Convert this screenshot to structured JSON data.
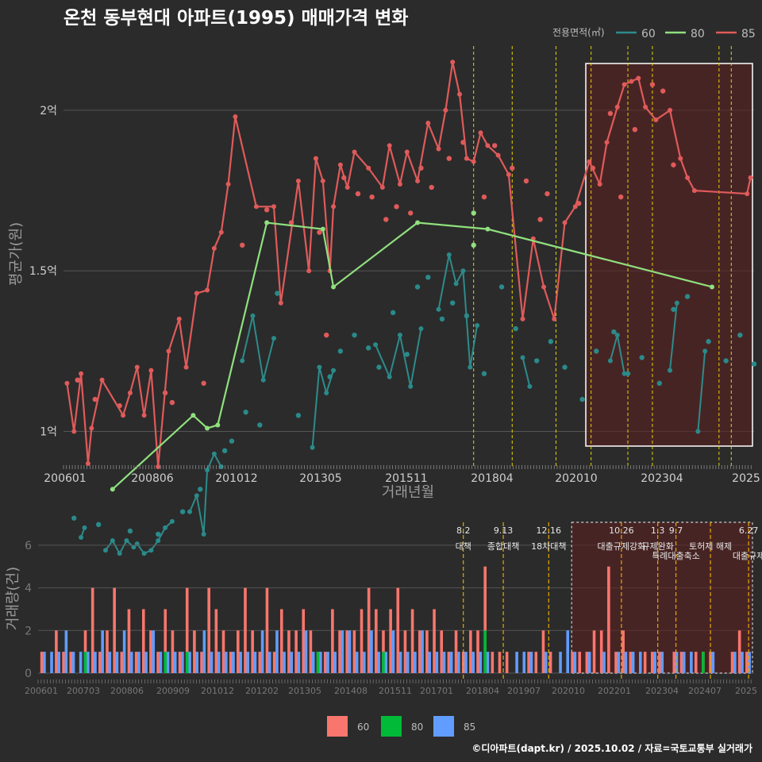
{
  "title": "온천 동부현대 아파트(1995) 매매가격 변화",
  "credit": "©디아파트(dapt.kr) / 2025.10.02 / 자료=국토교통부 실거래가",
  "colors": {
    "background": "#2b2b2b",
    "grid": "#555555",
    "s60": "#2a8a8a",
    "s60_line": "#2e8b8b",
    "s80": "#90e07e",
    "s85": "#e05a5a",
    "bar60": "#f8766d",
    "bar80": "#00ba38",
    "bar85": "#619cff",
    "event_line": "#e6d200",
    "event_line_bottom": "#e6a800",
    "highlight_fill": "#5a2020",
    "highlight_border": "#ffffff"
  },
  "chart_data": [
    {
      "type": "line",
      "name": "price",
      "title": "온천 동부현대 아파트(1995) 매매가격 변화",
      "xlabel": "거래년월",
      "ylabel": "평균가(원)",
      "x_ticks": [
        "200601",
        "200806",
        "201012",
        "201305",
        "201511",
        "201804",
        "202010",
        "202304",
        "2025"
      ],
      "y_ticks": [
        {
          "value": 10000,
          "label": "1억"
        },
        {
          "value": 15000,
          "label": "1.5억"
        },
        {
          "value": 20000,
          "label": "2억"
        }
      ],
      "ylim": [
        9000,
        22000
      ],
      "xlim": [
        2005.9,
        2025.6
      ],
      "legend_title": "전용면적(㎡)",
      "legend": [
        "60",
        "80",
        "85"
      ],
      "series": [
        {
          "name": "85",
          "line_x": [
            2006.0,
            2006.2,
            2006.4,
            2006.6,
            2006.7,
            2007.0,
            2007.6,
            2007.8,
            2008.0,
            2008.2,
            2008.4,
            2008.6,
            2008.9,
            2009.2,
            2009.4,
            2009.7,
            2010.0,
            2010.2,
            2010.4,
            2010.6,
            2010.8,
            2011.4,
            2011.9,
            2012.1,
            2012.6,
            2012.9,
            2013.1,
            2013.3,
            2013.5,
            2013.6,
            2013.8,
            2014.0,
            2014.2,
            2014.6,
            2015.0,
            2015.2,
            2015.5,
            2015.7,
            2016.0,
            2016.3,
            2016.6,
            2016.8,
            2017.0,
            2017.2,
            2017.4,
            2017.6,
            2017.8,
            2018.0,
            2018.3,
            2018.6,
            2019.0,
            2019.3,
            2019.6,
            2019.9,
            2020.2,
            2020.5,
            2020.9,
            2021.2,
            2021.4,
            2021.7,
            2021.9,
            2022.1,
            2022.3,
            2022.5,
            2022.8,
            2023.2,
            2023.5,
            2023.7,
            2023.9,
            2025.4,
            2025.5
          ],
          "line_y": [
            11500,
            10000,
            11800,
            9000,
            10100,
            11600,
            10500,
            11200,
            12000,
            10500,
            11900,
            8900,
            12500,
            13500,
            12000,
            14300,
            14400,
            15700,
            16200,
            17700,
            19800,
            17000,
            17000,
            14000,
            17800,
            15000,
            18500,
            17800,
            15000,
            17000,
            18300,
            17600,
            18700,
            18200,
            17600,
            18900,
            17700,
            18700,
            17800,
            19600,
            18800,
            20000,
            21500,
            20500,
            18500,
            18400,
            19300,
            18900,
            18600,
            18000,
            13500,
            16000,
            14500,
            13500,
            16500,
            17000,
            18400,
            17700,
            19000,
            20100,
            20800,
            20900,
            21000,
            20100,
            19700,
            20000,
            18500,
            17900,
            17500,
            17400,
            17900
          ],
          "points_x": [
            2006.3,
            2006.8,
            2007.5,
            2008.8,
            2009.0,
            2009.9,
            2011.0,
            2011.7,
            2012.4,
            2013.2,
            2013.4,
            2013.9,
            2014.3,
            2014.7,
            2015.1,
            2015.4,
            2015.8,
            2016.1,
            2016.4,
            2016.9,
            2017.3,
            2017.9,
            2018.2,
            2018.7,
            2019.1,
            2019.5,
            2019.7,
            2020.6,
            2021.0,
            2021.5,
            2021.8,
            2022.2,
            2022.7,
            2023.0,
            2023.3
          ],
          "points_y": [
            11600,
            11000,
            10800,
            11200,
            10900,
            11500,
            15800,
            16900,
            16500,
            16200,
            13000,
            17900,
            17400,
            17300,
            16600,
            17000,
            16800,
            18200,
            17600,
            18500,
            19000,
            17300,
            18900,
            18200,
            17800,
            16600,
            17400,
            17100,
            18200,
            19900,
            17300,
            19400,
            20800,
            20600,
            18300
          ]
        },
        {
          "name": "80",
          "line_x": [
            2007.3,
            2009.6,
            2010.0,
            2010.3,
            2011.7,
            2013.3,
            2013.6,
            2016.0,
            2018.0,
            2024.4
          ],
          "line_y": [
            8200,
            10500,
            10100,
            10200,
            16500,
            16300,
            14500,
            16500,
            16300,
            14500
          ],
          "points_x": [
            2017.6,
            2017.6
          ],
          "points_y": [
            16800,
            15800
          ]
        },
        {
          "name": "60",
          "segments": [
            {
              "x": [
                2006.4,
                2006.5
              ],
              "y": [
                6700,
                7000
              ]
            },
            {
              "x": [
                2007.1,
                2007.3,
                2007.5,
                2007.7,
                2007.9,
                2008.0,
                2008.2,
                2008.4,
                2008.6,
                2008.8,
                2009.0
              ],
              "y": [
                6300,
                6600,
                6200,
                6600,
                6400,
                6500,
                6200,
                6300,
                6600,
                7000,
                7200
              ]
            },
            {
              "x": [
                2009.5,
                2009.7,
                2009.9,
                2010.0,
                2010.2,
                2010.4
              ],
              "y": [
                7500,
                8000,
                6800,
                8800,
                9300,
                8900
              ]
            },
            {
              "x": [
                2011.0,
                2011.3,
                2011.6,
                2011.9
              ],
              "y": [
                12200,
                13600,
                11600,
                12900
              ]
            },
            {
              "x": [
                2013.0,
                2013.2,
                2013.4,
                2013.6
              ],
              "y": [
                9500,
                12000,
                11200,
                11900
              ]
            },
            {
              "x": [
                2014.8,
                2015.2,
                2015.5,
                2015.8,
                2016.1
              ],
              "y": [
                12700,
                11700,
                13000,
                11400,
                13200
              ]
            },
            {
              "x": [
                2016.6,
                2016.9,
                2017.1,
                2017.3,
                2017.5,
                2017.7
              ],
              "y": [
                13800,
                15500,
                14600,
                15000,
                12000,
                13300
              ]
            },
            {
              "x": [
                2019.0,
                2019.2
              ],
              "y": [
                12300,
                11400
              ]
            },
            {
              "x": [
                2021.5,
                2021.7,
                2021.9
              ],
              "y": [
                12200,
                13000,
                11800
              ]
            },
            {
              "x": [
                2023.2,
                2023.4
              ],
              "y": [
                11900,
                14000
              ]
            },
            {
              "x": [
                2024.0,
                2024.2
              ],
              "y": [
                10000,
                12500
              ]
            }
          ],
          "points_x": [
            2006.2,
            2006.9,
            2007.8,
            2008.6,
            2009.3,
            2009.8,
            2010.5,
            2010.7,
            2011.1,
            2011.5,
            2012.0,
            2012.6,
            2013.5,
            2013.8,
            2014.2,
            2014.6,
            2014.9,
            2015.3,
            2015.7,
            2016.0,
            2016.3,
            2016.7,
            2017.0,
            2017.4,
            2017.9,
            2018.4,
            2018.8,
            2019.4,
            2019.8,
            2020.2,
            2020.7,
            2021.1,
            2021.6,
            2022.0,
            2022.4,
            2022.9,
            2023.3,
            2023.7,
            2024.3,
            2024.8,
            2025.2,
            2025.6
          ],
          "points_y": [
            7300,
            7100,
            6900,
            6800,
            7500,
            8200,
            9400,
            9700,
            10600,
            10200,
            14300,
            10500,
            11700,
            12500,
            13000,
            12600,
            12000,
            13700,
            12400,
            14500,
            14800,
            13500,
            14000,
            13600,
            11800,
            14500,
            13200,
            12200,
            12800,
            12000,
            11000,
            12500,
            13100,
            11800,
            12300,
            11500,
            13800,
            14200,
            12800,
            12200,
            13000,
            12100
          ]
        }
      ],
      "highlight_range": [
        2020.8,
        2025.6
      ],
      "event_lines": [
        2017.6,
        2018.7,
        2019.95,
        2020.95,
        2022.0,
        2022.7,
        2024.6,
        2024.95
      ]
    },
    {
      "type": "bar",
      "name": "volume",
      "ylabel": "거래량(건)",
      "x_ticks": [
        "200601",
        "200703",
        "200806",
        "200909",
        "201012",
        "201202",
        "201305",
        "201408",
        "201511",
        "201701",
        "201804",
        "201907",
        "202010",
        "202201",
        "202304",
        "202407",
        "2025"
      ],
      "y_ticks": [
        0,
        2,
        4,
        6
      ],
      "ylim": [
        0,
        7
      ],
      "legend": [
        "60",
        "80",
        "85"
      ],
      "events": [
        {
          "x": 2017.6,
          "date": "8.2",
          "label": "대책"
        },
        {
          "x": 2018.7,
          "date": "9.13",
          "label": "종합대책"
        },
        {
          "x": 2019.95,
          "date": "12.16",
          "label": "18차대책"
        },
        {
          "x": 2021.95,
          "date": "10.26",
          "label": "대출규제강화"
        },
        {
          "x": 2022.95,
          "date": "1.3",
          "label": "규제완화"
        },
        {
          "x": 2023.45,
          "date": "9.7",
          "label": "특례대출축소"
        },
        {
          "x": 2024.4,
          "date": "",
          "label": "토허제 해제"
        },
        {
          "x": 2025.45,
          "date": "6.27",
          "label": "대출규제"
        }
      ],
      "bars_total_x": [
        2006.0,
        2006.2,
        2006.4,
        2006.6,
        2006.8,
        2007.0,
        2007.2,
        2007.4,
        2007.6,
        2007.8,
        2008.0,
        2008.2,
        2008.4,
        2008.6,
        2008.8,
        2009.0,
        2009.2,
        2009.4,
        2009.6,
        2009.8,
        2010.0,
        2010.2,
        2010.4,
        2010.6,
        2010.8,
        2011.0,
        2011.2,
        2011.4,
        2011.6,
        2011.8,
        2012.0,
        2012.2,
        2012.4,
        2012.6,
        2012.8,
        2013.0,
        2013.2,
        2013.4,
        2013.6,
        2013.8,
        2014.0,
        2014.2,
        2014.4,
        2014.6,
        2014.8,
        2015.0,
        2015.2,
        2015.4,
        2015.6,
        2015.8,
        2016.0,
        2016.2,
        2016.4,
        2016.6,
        2016.8,
        2017.0,
        2017.2,
        2017.4,
        2017.6,
        2017.8,
        2018.0,
        2018.2,
        2018.4,
        2018.6,
        2018.8,
        2019.0,
        2019.2,
        2019.4,
        2019.6,
        2019.8,
        2020.0,
        2020.2,
        2020.4,
        2020.6,
        2020.8,
        2021.0,
        2021.2,
        2021.4,
        2021.6,
        2021.8,
        2022.0,
        2022.2,
        2022.4,
        2022.6,
        2022.8,
        2023.0,
        2023.2,
        2023.4,
        2023.6,
        2023.8,
        2024.0,
        2024.2,
        2024.4,
        2024.6,
        2024.8,
        2025.0,
        2025.2,
        2025.4
      ],
      "bars_60": [
        1,
        0,
        2,
        1,
        1,
        0,
        2,
        4,
        1,
        2,
        4,
        1,
        3,
        1,
        3,
        2,
        1,
        3,
        2,
        1,
        4,
        2,
        1,
        4,
        3,
        2,
        1,
        2,
        4,
        2,
        1,
        4,
        1,
        3,
        2,
        2,
        3,
        2,
        1,
        1,
        3,
        2,
        2,
        2,
        3,
        4,
        3,
        2,
        3,
        4,
        2,
        3,
        2,
        2,
        3,
        2,
        1,
        2,
        1,
        2,
        2,
        5,
        1,
        1,
        1,
        0,
        0,
        1,
        1,
        2,
        1,
        0,
        0,
        1,
        1,
        1,
        2,
        2,
        5,
        1,
        2,
        1,
        0,
        1,
        1,
        1,
        0,
        1,
        1,
        0,
        1,
        1,
        1,
        0,
        0,
        1,
        2,
        1
      ],
      "bars_80": [
        0,
        0,
        0,
        0,
        0,
        0,
        1,
        0,
        0,
        0,
        0,
        0,
        0,
        0,
        0,
        0,
        0,
        1,
        0,
        0,
        1,
        0,
        0,
        0,
        0,
        0,
        0,
        0,
        0,
        0,
        0,
        0,
        0,
        0,
        0,
        0,
        0,
        0,
        1,
        0,
        0,
        0,
        0,
        0,
        0,
        0,
        0,
        1,
        0,
        0,
        0,
        0,
        0,
        0,
        0,
        0,
        0,
        0,
        0,
        0,
        0,
        2,
        0,
        0,
        0,
        0,
        0,
        0,
        0,
        0,
        0,
        0,
        0,
        0,
        0,
        0,
        0,
        0,
        0,
        0,
        0,
        0,
        0,
        0,
        0,
        0,
        0,
        0,
        0,
        0,
        0,
        1,
        0,
        0,
        0,
        0,
        0,
        0
      ],
      "bars_85": [
        1,
        1,
        1,
        2,
        1,
        1,
        1,
        1,
        2,
        1,
        1,
        2,
        1,
        1,
        1,
        2,
        1,
        1,
        1,
        1,
        1,
        1,
        2,
        1,
        1,
        1,
        1,
        1,
        1,
        1,
        2,
        1,
        2,
        1,
        1,
        1,
        2,
        1,
        1,
        1,
        1,
        2,
        2,
        1,
        1,
        2,
        1,
        1,
        2,
        1,
        1,
        1,
        2,
        1,
        1,
        1,
        1,
        1,
        1,
        1,
        1,
        1,
        0,
        0,
        0,
        1,
        1,
        1,
        0,
        1,
        0,
        1,
        2,
        1,
        0,
        1,
        0,
        1,
        0,
        1,
        1,
        1,
        1,
        0,
        1,
        1,
        0,
        1,
        1,
        1,
        0,
        0,
        1,
        0,
        0,
        1,
        1,
        1
      ],
      "xlim": [
        2005.9,
        2025.6
      ],
      "highlight_range": [
        2020.8,
        2025.6
      ]
    }
  ]
}
